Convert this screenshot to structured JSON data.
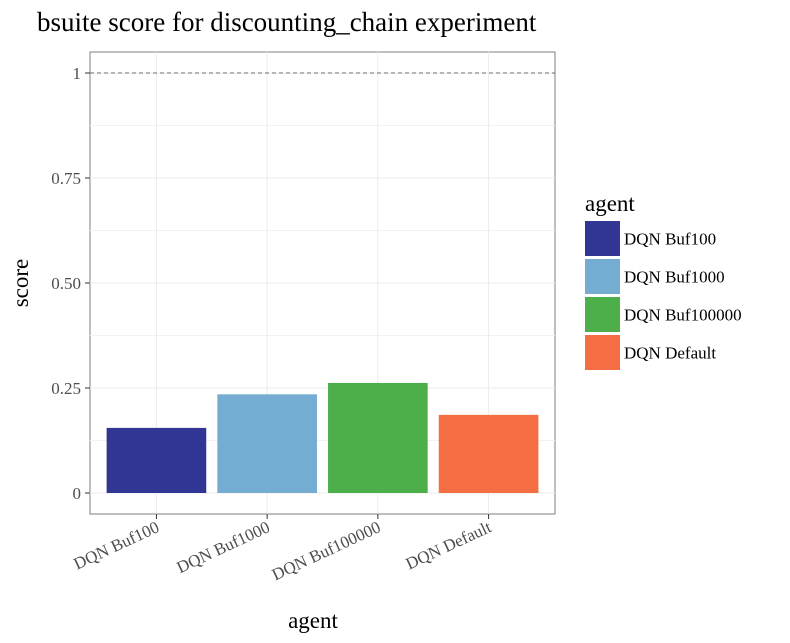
{
  "chart_data": {
    "type": "bar",
    "title": "bsuite score for discounting_chain experiment",
    "xlabel": "agent",
    "ylabel": "score",
    "categories": [
      "DQN Buf100",
      "DQN Buf1000",
      "DQN Buf100000",
      "DQN Default"
    ],
    "values": [
      0.155,
      0.235,
      0.262,
      0.186
    ],
    "colors": [
      "#313695",
      "#74add1",
      "#4daf4a",
      "#f46d43"
    ],
    "ylim": [
      -0.05,
      1.05
    ],
    "yticks": [
      0,
      0.25,
      0.5,
      0.75,
      1
    ],
    "ytick_labels": [
      "0",
      "0.25",
      "0.50",
      "0.75",
      "1"
    ],
    "reference_line": 1,
    "grid": true,
    "legend": {
      "title": "agent",
      "placement": "right",
      "entries": [
        "DQN Buf100",
        "DQN Buf1000",
        "DQN Buf100000",
        "DQN Default"
      ]
    }
  }
}
